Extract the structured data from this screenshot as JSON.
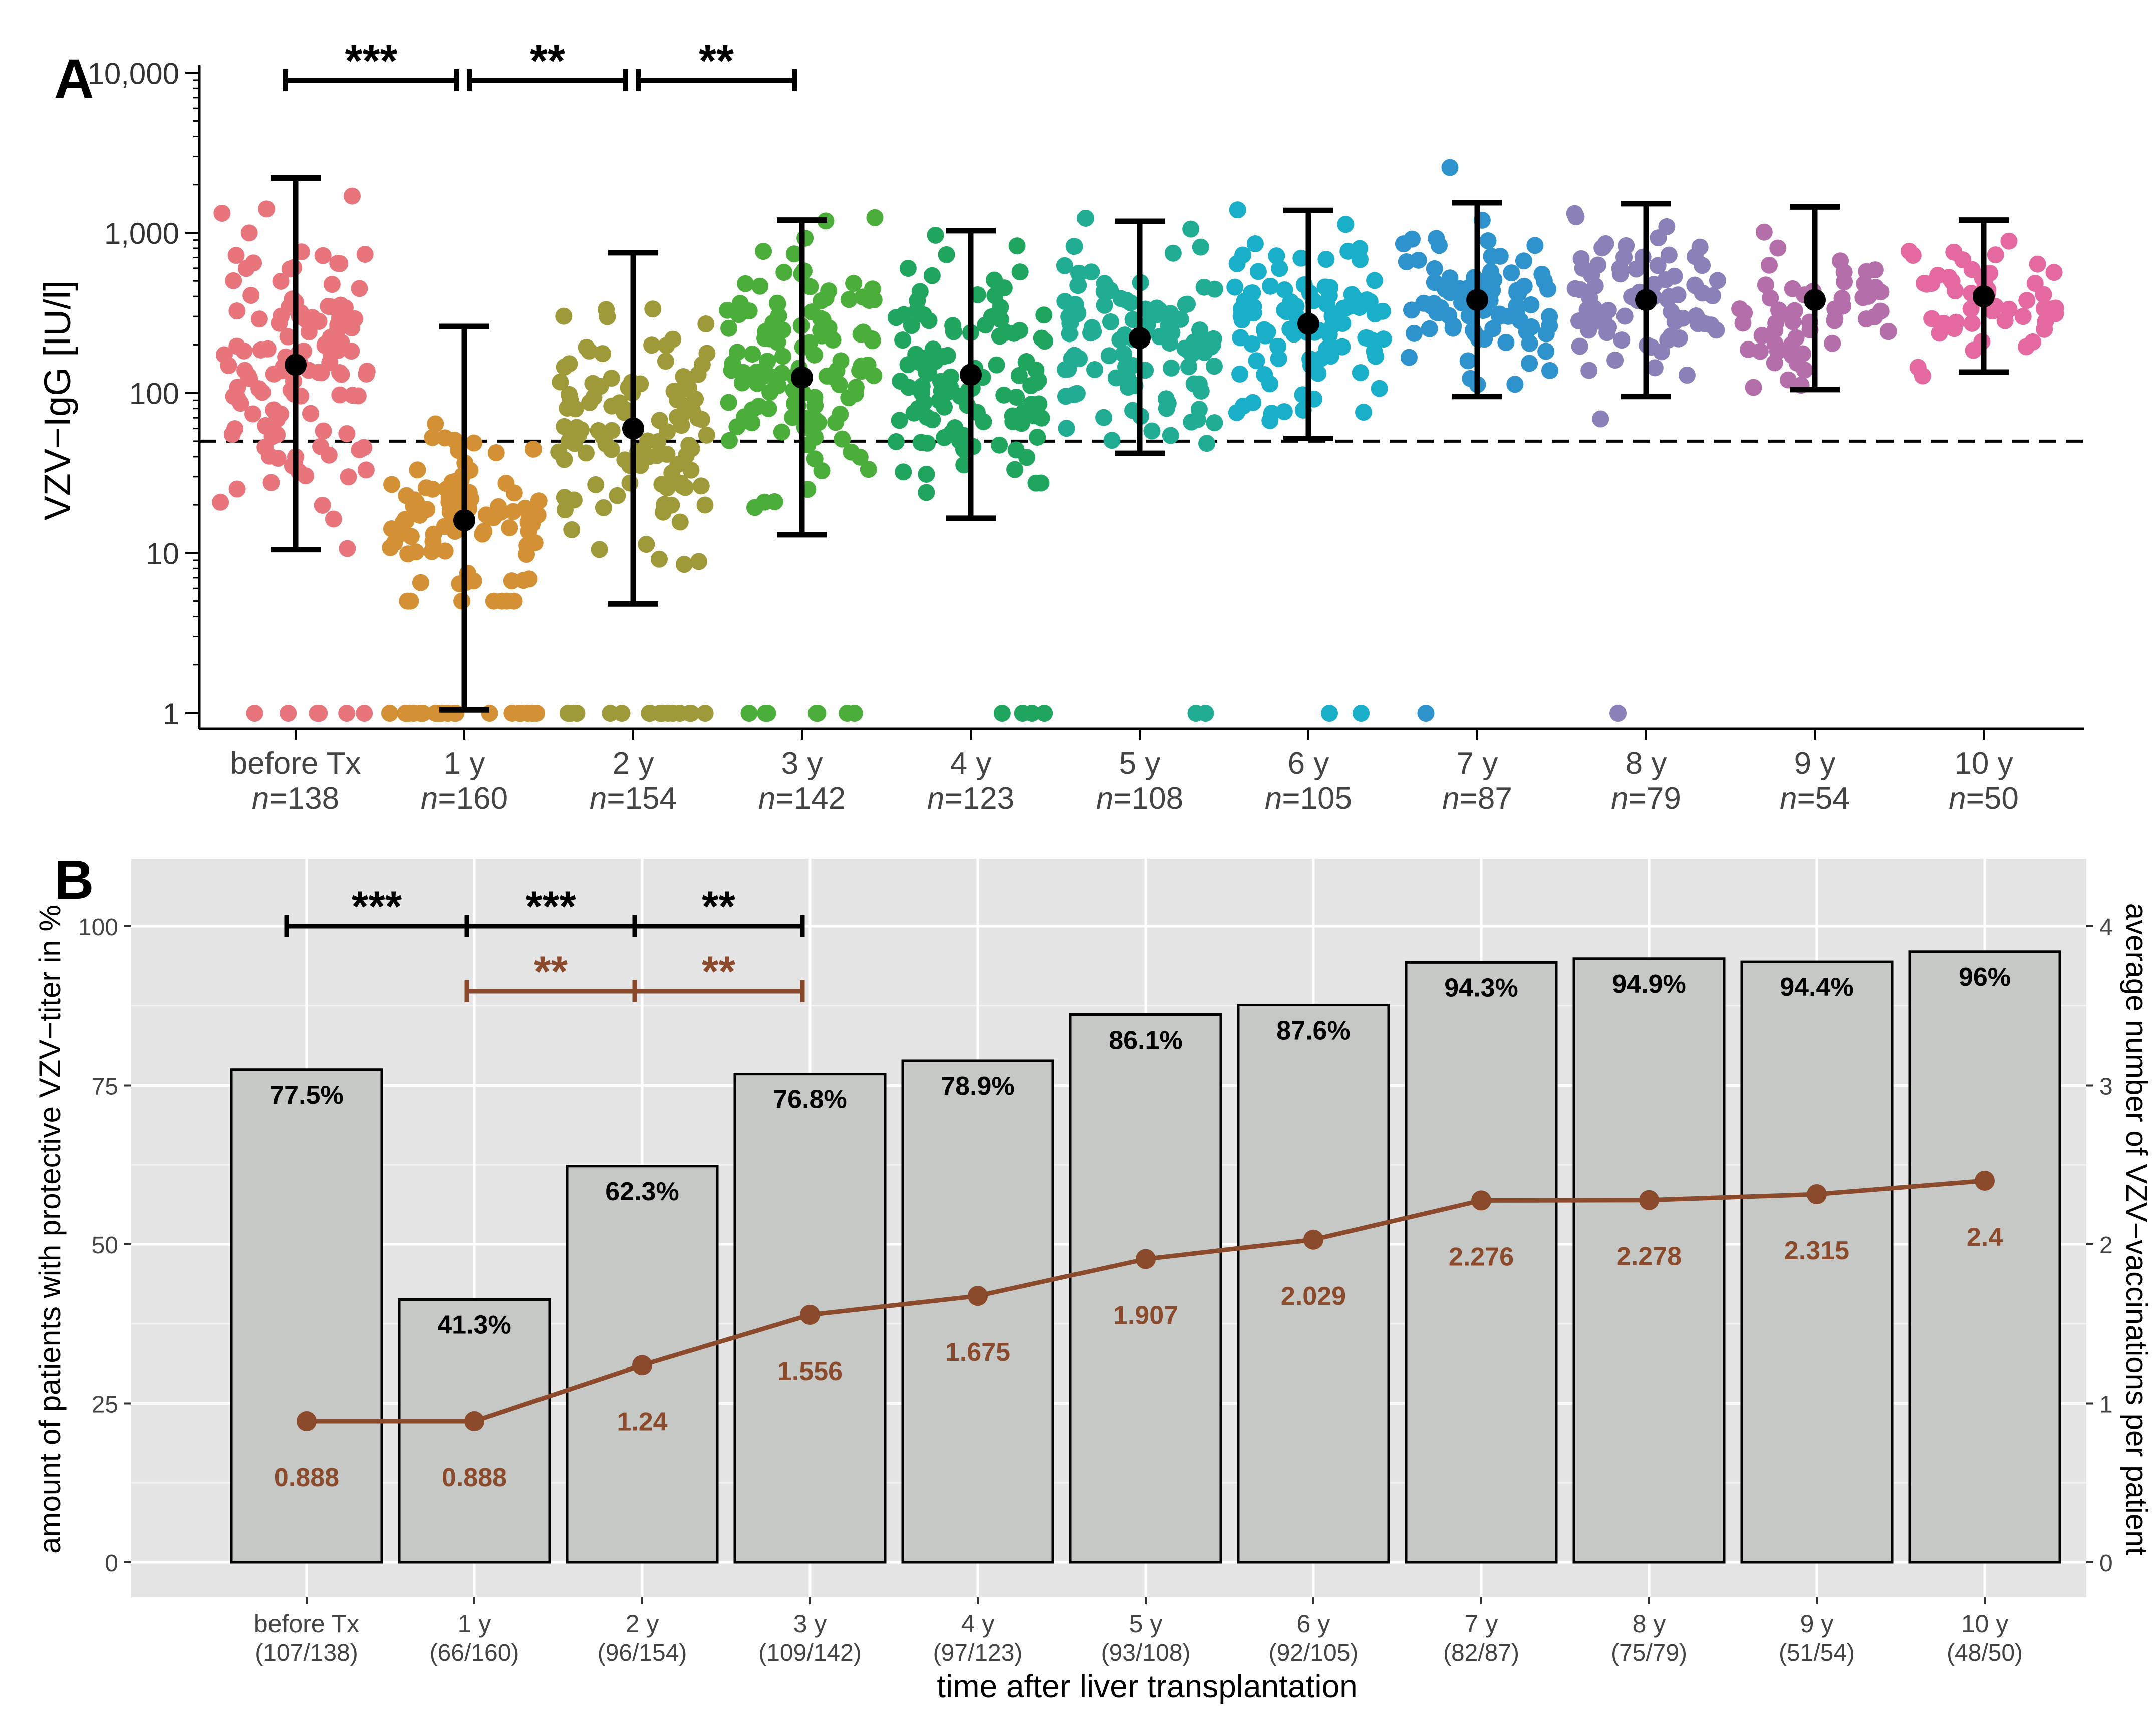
{
  "chart_data": [
    {
      "panel": "A",
      "type": "scatter",
      "panel_label": "A",
      "ylabel": "VZV−IgG [IU/l]",
      "yscale": "log10",
      "ylim": [
        0.8,
        12000
      ],
      "yticks": [
        1,
        10,
        100,
        1000,
        10000
      ],
      "ytick_labels": [
        "1",
        "10",
        "100",
        "1,000",
        "10,000"
      ],
      "reference_line": 50,
      "categories": [
        "before Tx",
        "1 y",
        "2 y",
        "3 y",
        "4 y",
        "5 y",
        "6 y",
        "7 y",
        "8 y",
        "9 y",
        "10 y"
      ],
      "n_labels": [
        "n=138",
        "n=160",
        "n=154",
        "n=142",
        "n=123",
        "n=108",
        "n=105",
        "n=87",
        "n=79",
        "n=54",
        "n=50"
      ],
      "n_prefix": "n",
      "n_values": [
        "=138",
        "=160",
        "=154",
        "=142",
        "=123",
        "=108",
        "=105",
        "=87",
        "=79",
        "=54",
        "=50"
      ],
      "colors": [
        "#E8747C",
        "#D39034",
        "#9E9A3A",
        "#4BAE3B",
        "#20A55E",
        "#20AD94",
        "#19AFC9",
        "#2E93CC",
        "#8C80B8",
        "#B46FAB",
        "#E369A0"
      ],
      "summary": [
        {
          "center": 150,
          "low": 10.5,
          "high": 2200
        },
        {
          "center": 16,
          "low": 1.05,
          "high": 260
        },
        {
          "center": 60,
          "low": 4.8,
          "high": 750
        },
        {
          "center": 125,
          "low": 13,
          "high": 1200
        },
        {
          "center": 130,
          "low": 16.5,
          "high": 1030
        },
        {
          "center": 220,
          "low": 42,
          "high": 1180
        },
        {
          "center": 270,
          "low": 52,
          "high": 1380
        },
        {
          "center": 380,
          "low": 95,
          "high": 1540
        },
        {
          "center": 380,
          "low": 95,
          "high": 1520
        },
        {
          "center": 380,
          "low": 105,
          "high": 1450
        },
        {
          "center": 400,
          "low": 135,
          "high": 1200
        }
      ],
      "significance": [
        {
          "from": 0,
          "to": 1,
          "label": "***"
        },
        {
          "from": 1,
          "to": 2,
          "label": "**"
        },
        {
          "from": 2,
          "to": 3,
          "label": "**"
        }
      ]
    },
    {
      "panel": "B",
      "type": "bar",
      "panel_label": "B",
      "xlabel": "time after liver transplantation",
      "ylabel": "amount of patients with protective VZV−titer in %",
      "y2label": "average number of VZV−vaccinations per patient",
      "ylim": [
        0,
        105
      ],
      "yticks": [
        0,
        25,
        50,
        75,
        100
      ],
      "ytick_labels": [
        "0",
        "25",
        "50",
        "75",
        "100"
      ],
      "y2lim": [
        0,
        4.2
      ],
      "y2ticks": [
        0,
        1,
        2,
        3,
        4
      ],
      "y2tick_labels": [
        "0",
        "1",
        "2",
        "3",
        "4"
      ],
      "categories": [
        "before Tx",
        "1 y",
        "2 y",
        "3 y",
        "4 y",
        "5 y",
        "6 y",
        "7 y",
        "8 y",
        "9 y",
        "10 y"
      ],
      "count_labels": [
        "(107/138)",
        "(66/160)",
        "(96/154)",
        "(109/142)",
        "(97/123)",
        "(93/108)",
        "(92/105)",
        "(82/87)",
        "(75/79)",
        "(51/54)",
        "(48/50)"
      ],
      "values": [
        77.5,
        41.3,
        62.3,
        76.8,
        78.9,
        86.1,
        87.6,
        94.3,
        94.9,
        94.4,
        96
      ],
      "value_labels": [
        "77.5%",
        "41.3%",
        "62.3%",
        "76.8%",
        "78.9%",
        "86.1%",
        "87.6%",
        "94.3%",
        "94.9%",
        "94.4%",
        "96%"
      ],
      "line_series": {
        "name": "average number of VZV−vaccinations per patient",
        "values": [
          0.888,
          0.888,
          1.24,
          1.556,
          1.675,
          1.907,
          2.029,
          2.276,
          2.278,
          2.315,
          2.4
        ],
        "labels": [
          "0.888",
          "0.888",
          "1.24",
          "1.556",
          "1.675",
          "1.907",
          "2.029",
          "2.276",
          "2.278",
          "2.315",
          "2.4"
        ]
      },
      "colors": {
        "bar_fill": "#C5C8C4",
        "panel_bg": "#E5E5E5",
        "line": "#8B4A2B",
        "grid": "#FFFFFF"
      },
      "significance": [
        {
          "from": 0,
          "to": 1,
          "label": "***",
          "color": "#000000",
          "level": 1
        },
        {
          "from": 1,
          "to": 2,
          "label": "***",
          "color": "#000000",
          "level": 1
        },
        {
          "from": 2,
          "to": 3,
          "label": "**",
          "color": "#000000",
          "level": 1
        },
        {
          "from": 1,
          "to": 2,
          "label": "**",
          "color": "#8B4A2B",
          "level": 2
        },
        {
          "from": 2,
          "to": 3,
          "label": "**",
          "color": "#8B4A2B",
          "level": 2
        }
      ]
    }
  ]
}
